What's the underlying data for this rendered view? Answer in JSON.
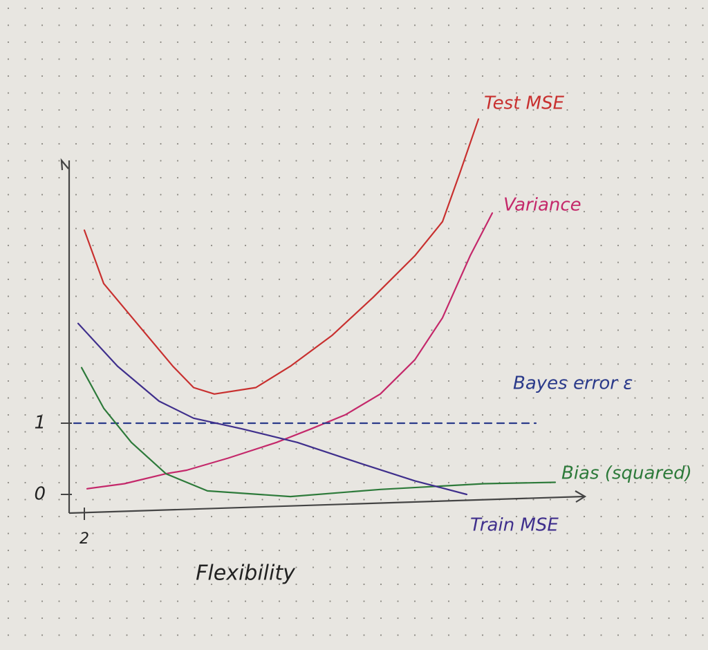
{
  "chart_data": {
    "type": "line",
    "xlabel": "Flexibility",
    "xlim": [
      1.78,
      9.23
    ],
    "ylim": [
      -0.25,
      5.5
    ],
    "xticks": [
      2
    ],
    "yticks": [
      0,
      1
    ],
    "grid": false,
    "series": [
      {
        "name": "Test MSE",
        "color": "#c8302f",
        "x": [
          2.0,
          2.28,
          2.78,
          3.28,
          3.58,
          3.88,
          4.48,
          4.98,
          5.58,
          6.18,
          6.78,
          7.18,
          7.43,
          7.7
        ],
        "values": [
          3.71,
          2.96,
          2.38,
          1.8,
          1.5,
          1.41,
          1.5,
          1.8,
          2.23,
          2.77,
          3.35,
          3.83,
          4.51,
          5.27
        ]
      },
      {
        "name": "Variance",
        "color": "#c4286a",
        "x": [
          2.04,
          2.58,
          3.18,
          3.48,
          4.08,
          4.78,
          5.28,
          5.78,
          6.28,
          6.78,
          7.18,
          7.58,
          7.9
        ],
        "values": [
          0.08,
          0.15,
          0.29,
          0.34,
          0.51,
          0.73,
          0.92,
          1.12,
          1.41,
          1.89,
          2.48,
          3.35,
          3.95
        ]
      },
      {
        "name": "Bayes error ε",
        "color": "#2a3a8a",
        "dashed": true,
        "x": [
          1.85,
          8.53
        ],
        "values": [
          1,
          1
        ]
      },
      {
        "name": "Bias (squared)",
        "color": "#2d7a3a",
        "x": [
          1.96,
          2.28,
          2.68,
          3.18,
          3.78,
          4.98,
          6.28,
          7.78,
          8.81
        ],
        "values": [
          1.78,
          1.21,
          0.73,
          0.29,
          0.05,
          -0.03,
          0.07,
          0.15,
          0.17
        ]
      },
      {
        "name": "Train MSE",
        "color": "#3f2f8c",
        "x": [
          1.91,
          2.48,
          3.08,
          3.58,
          4.28,
          5.08,
          5.98,
          6.78,
          7.53
        ],
        "values": [
          2.4,
          1.8,
          1.31,
          1.07,
          0.92,
          0.73,
          0.44,
          0.19,
          0.0
        ]
      }
    ]
  }
}
